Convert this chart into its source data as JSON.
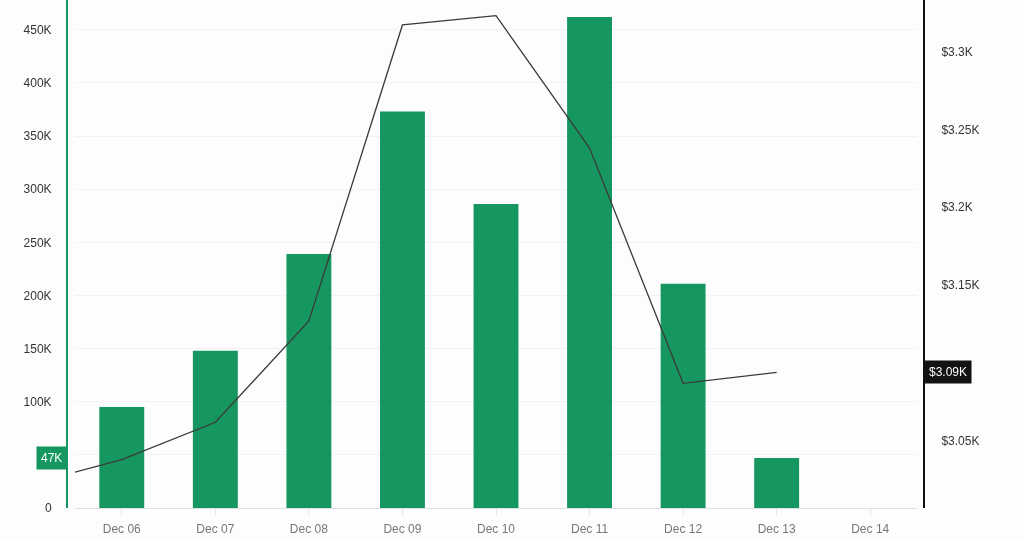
{
  "chart_data": {
    "type": "bar",
    "x": [
      "--12-06",
      "--12-07",
      "--12-08",
      "--12-09",
      "--12-10",
      "--12-11",
      "--12-12",
      "--12-13"
    ],
    "series": [
      {
        "color": "#15975f",
        "values": [
          95000,
          148000,
          239000,
          373000,
          286000,
          462000,
          211000,
          47000
        ]
      },
      {
        "type": "line",
        "axis": "y2",
        "color": "#3a3a3a",
        "x": [
          "--12-05T12:00",
          "--12-06",
          "--12-07",
          "--12-08",
          "--12-09",
          "--12-10",
          "--12-11",
          "--12-12",
          "--12-13"
        ],
        "values": [
          3030,
          3038,
          3062,
          3127,
          3317,
          3323,
          3238,
          3087,
          3094
        ]
      }
    ],
    "xlim": [
      "--12-05T12:00",
      "--12-14T12:00"
    ],
    "xticks": [
      {
        "value": "--12-06",
        "label": "Dec 06"
      },
      {
        "value": "--12-07",
        "label": "Dec 07"
      },
      {
        "value": "--12-08",
        "label": "Dec 08"
      },
      {
        "value": "--12-09",
        "label": "Dec 09"
      },
      {
        "value": "--12-10",
        "label": "Dec 10"
      },
      {
        "value": "--12-11",
        "label": "Dec 11"
      },
      {
        "value": "--12-12",
        "label": "Dec 12"
      },
      {
        "value": "--12-13",
        "label": "Dec 13"
      },
      {
        "value": "--12-14",
        "label": "Dec 14"
      }
    ],
    "ylim": [
      0,
      478000
    ],
    "yticks": [
      0,
      {
        "value": 50000,
        "label": null
      },
      {
        "value": 100000,
        "label": "100K"
      },
      {
        "value": 150000,
        "label": "150K"
      },
      {
        "value": 200000,
        "label": "200K"
      },
      {
        "value": 250000,
        "label": "250K"
      },
      {
        "value": 300000,
        "label": "300K"
      },
      {
        "value": 350000,
        "label": "350K"
      },
      {
        "value": 400000,
        "label": "400K"
      },
      {
        "value": 450000,
        "label": "450K"
      }
    ],
    "y2lim": [
      3007,
      3333
    ],
    "y2ticks": [
      {
        "value": 3050,
        "label": "$3.05K"
      },
      {
        "value": 3150,
        "label": "$3.15K"
      },
      {
        "value": 3200,
        "label": "$3.2K"
      },
      {
        "value": 3250,
        "label": "$3.25K"
      },
      {
        "value": 3300,
        "label": "$3.3K"
      }
    ],
    "annotations": [
      "47K",
      "$3.09K"
    ],
    "grid": "y",
    "marker": "none",
    "line_style": "solid"
  }
}
